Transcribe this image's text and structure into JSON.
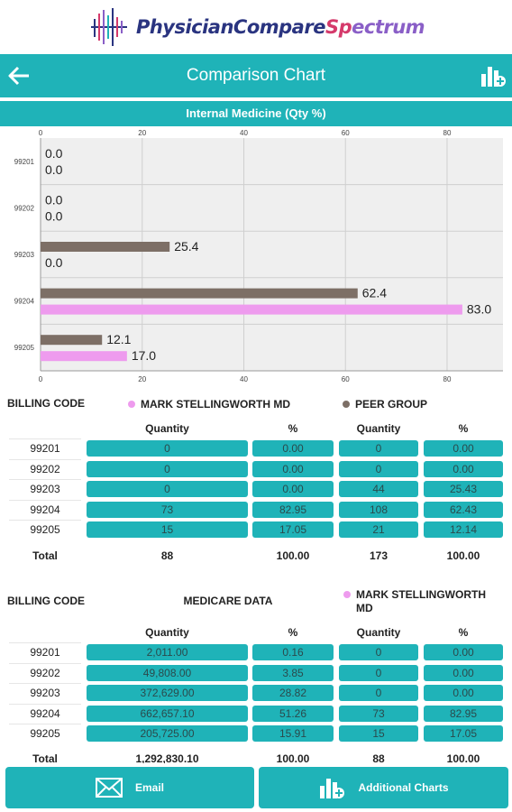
{
  "logo": {
    "part1": "PhysicianCompare",
    "part2": "Sp",
    "part3": "ectrum"
  },
  "header": {
    "title": "Comparison Chart",
    "back_icon": "arrow-left-icon",
    "charts_icon": "add-chart-icon"
  },
  "section": {
    "title": "Internal Medicine (Qty %)"
  },
  "colors": {
    "accent": "#1fb3b8",
    "physician": "#ee9bee",
    "peer": "#7d6f66"
  },
  "chart_data": {
    "type": "bar",
    "orientation": "horizontal",
    "categories": [
      "99201",
      "99202",
      "99203",
      "99204",
      "99205"
    ],
    "series": [
      {
        "name": "PEER GROUP",
        "values": [
          0.0,
          0.0,
          25.4,
          62.4,
          12.1
        ]
      },
      {
        "name": "MARK  STELLINGWORTH MD",
        "values": [
          0.0,
          0.0,
          0.0,
          83.0,
          17.0
        ]
      }
    ],
    "x_ticks": [
      "0",
      "20",
      "40",
      "60",
      "80"
    ],
    "xlim": [
      0,
      91
    ],
    "grid": true,
    "data_labels": true
  },
  "table1": {
    "billing_label": "BILLING CODE",
    "legend_a": "MARK  STELLINGWORTH MD",
    "legend_b": "PEER GROUP",
    "col_heads": [
      "Quantity",
      "%",
      "Quantity",
      "%"
    ],
    "rows": [
      {
        "code": "99201",
        "vals": [
          "0",
          "0.00",
          "0",
          "0.00"
        ]
      },
      {
        "code": "99202",
        "vals": [
          "0",
          "0.00",
          "0",
          "0.00"
        ]
      },
      {
        "code": "99203",
        "vals": [
          "0",
          "0.00",
          "44",
          "25.43"
        ]
      },
      {
        "code": "99204",
        "vals": [
          "73",
          "82.95",
          "108",
          "62.43"
        ]
      },
      {
        "code": "99205",
        "vals": [
          "15",
          "17.05",
          "21",
          "12.14"
        ]
      }
    ],
    "total_label": "Total",
    "totals": [
      "88",
      "100.00",
      "173",
      "100.00"
    ]
  },
  "table2": {
    "billing_label": "BILLING CODE",
    "group_a": "MEDICARE DATA",
    "legend_b_line1": "MARK  STELLINGWORTH",
    "legend_b_line2": "MD",
    "col_heads": [
      "Quantity",
      "%",
      "Quantity",
      "%"
    ],
    "rows": [
      {
        "code": "99201",
        "vals": [
          "2,011.00",
          "0.16",
          "0",
          "0.00"
        ]
      },
      {
        "code": "99202",
        "vals": [
          "49,808.00",
          "3.85",
          "0",
          "0.00"
        ]
      },
      {
        "code": "99203",
        "vals": [
          "372,629.00",
          "28.82",
          "0",
          "0.00"
        ]
      },
      {
        "code": "99204",
        "vals": [
          "662,657.10",
          "51.26",
          "73",
          "82.95"
        ]
      },
      {
        "code": "99205",
        "vals": [
          "205,725.00",
          "15.91",
          "15",
          "17.05"
        ]
      }
    ],
    "total_label": "Total",
    "totals": [
      "1,292,830.10",
      "100.00",
      "88",
      "100.00"
    ]
  },
  "bottom": {
    "email_label": "Email",
    "email_icon": "envelope-icon",
    "charts_label": "Additional Charts",
    "charts_icon": "add-chart-icon"
  }
}
